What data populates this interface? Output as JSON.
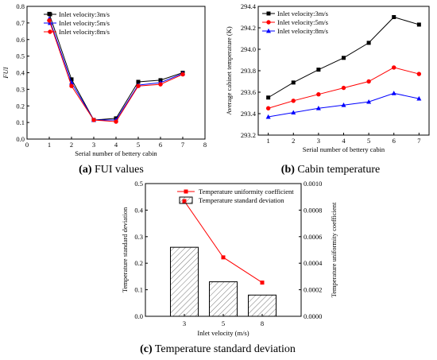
{
  "charts": {
    "a": {
      "chart_data": {
        "type": "line",
        "x": [
          1,
          2,
          3,
          4,
          5,
          6,
          7
        ],
        "series": [
          {
            "name": "Inlet velocity:3m/s",
            "color": "#000000",
            "marker": "square",
            "values": [
              0.755,
              0.36,
              0.115,
              0.125,
              0.345,
              0.355,
              0.4
            ]
          },
          {
            "name": "Inlet velocity:5m/s",
            "color": "#0000ff",
            "marker": "triangle",
            "values": [
              0.725,
              0.34,
              0.115,
              0.115,
              0.325,
              0.34,
              0.395
            ]
          },
          {
            "name": "Inlet velocity:8m/s",
            "color": "#ff0000",
            "marker": "circle",
            "values": [
              0.715,
              0.32,
              0.115,
              0.105,
              0.32,
              0.33,
              0.39
            ]
          }
        ],
        "xlabel": "Serial number of bettery cabin",
        "ylabel": "FUI",
        "xlim": [
          0,
          8
        ],
        "ylim": [
          0,
          0.8
        ],
        "xticks": [
          "0",
          "1",
          "2",
          "3",
          "4",
          "5",
          "6",
          "7",
          "8"
        ],
        "yticks": [
          "0.0",
          "0.1",
          "0.2",
          "0.3",
          "0.4",
          "0.5",
          "0.6",
          "0.7",
          "0.8"
        ],
        "legend_position": "top-right",
        "grid": false
      },
      "caption_label": "(a)",
      "caption_text": " FUI values"
    },
    "b": {
      "chart_data": {
        "type": "line",
        "x": [
          1,
          2,
          3,
          4,
          5,
          6,
          7
        ],
        "series": [
          {
            "name": "Inlet velocity:3m/s",
            "color": "#000000",
            "marker": "square",
            "values": [
              293.55,
              293.69,
              293.81,
              293.92,
              294.06,
              294.3,
              294.23
            ]
          },
          {
            "name": "Inlet velocity:5m/s",
            "color": "#ff0000",
            "marker": "circle",
            "values": [
              293.45,
              293.52,
              293.58,
              293.64,
              293.7,
              293.83,
              293.77
            ]
          },
          {
            "name": "Inlet velocity:8m/s",
            "color": "#0000ff",
            "marker": "triangle",
            "values": [
              293.37,
              293.41,
              293.45,
              293.48,
              293.51,
              293.59,
              293.54
            ]
          }
        ],
        "xlabel": "Serial number of bettery cabin",
        "ylabel": "Average cabinet temperature (K)",
        "xlim": [
          0.6,
          7.4
        ],
        "ylim": [
          293.2,
          294.4
        ],
        "xticks": [
          "1",
          "2",
          "3",
          "4",
          "5",
          "6",
          "7"
        ],
        "yticks": [
          "293.2",
          "293.4",
          "293.6",
          "293.8",
          "294.0",
          "294.2",
          "294.4"
        ],
        "legend_position": "top-left",
        "grid": false
      },
      "caption_label": "(b)",
      "caption_text": " Cabin temperature"
    },
    "c": {
      "chart_data": {
        "type": "bar",
        "categories": [
          "3",
          "5",
          "8"
        ],
        "series": [
          {
            "name": "Temperature standard deviation",
            "axis": "left",
            "kind": "bar",
            "values": [
              0.26,
              0.13,
              0.08
            ]
          },
          {
            "name": "Temperature uniformity coefficient",
            "axis": "right",
            "kind": "line",
            "color": "#ff0000",
            "marker": "square",
            "values": [
              0.000868,
              0.000444,
              0.000254
            ]
          }
        ],
        "xlabel": "Inlet velocity (m/s)",
        "ylabel": "Temperature standard deviation",
        "y2label": "Temperature uniformity coefficient",
        "ylim": [
          0,
          0.5
        ],
        "y2lim": [
          0,
          0.001
        ],
        "yticks": [
          "0.0",
          "0.1",
          "0.2",
          "0.3",
          "0.4",
          "0.5"
        ],
        "y2ticks": [
          "0.0000",
          "0.0002",
          "0.0004",
          "0.0006",
          "0.0008",
          "0.0010"
        ],
        "legend_position": "top-center",
        "grid": false
      },
      "caption_label": "(c)",
      "caption_text": " Temperature standard deviation"
    }
  }
}
